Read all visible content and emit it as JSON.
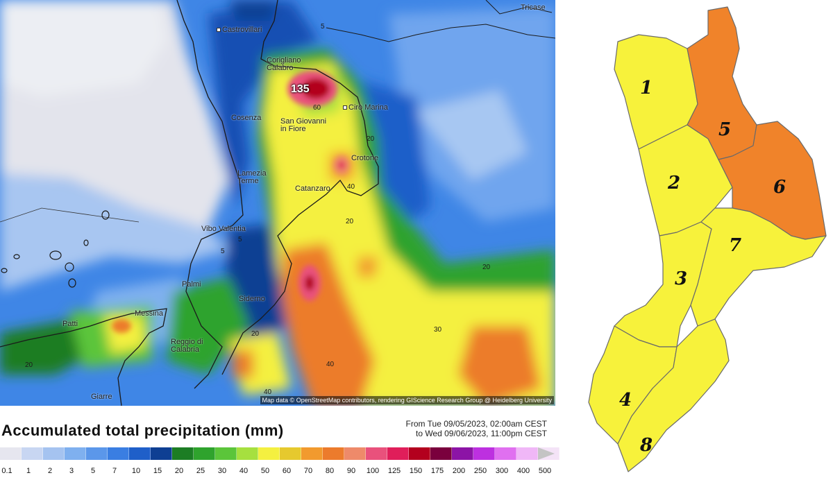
{
  "precip_map": {
    "peak_value": "135",
    "cities": [
      {
        "name": "Castrovillari"
      },
      {
        "name": "Corigliano\nCalabro"
      },
      {
        "name": "Cirò Marina"
      },
      {
        "name": "Cosenza"
      },
      {
        "name": "San Giovanni\nin Fiore"
      },
      {
        "name": "Crotone"
      },
      {
        "name": "Lamezia\nTerme"
      },
      {
        "name": "Catanzaro"
      },
      {
        "name": "Vibo Valentia"
      },
      {
        "name": "Palmi"
      },
      {
        "name": "Siderno"
      },
      {
        "name": "Messina"
      },
      {
        "name": "Patti"
      },
      {
        "name": "Reggio di\nCalabria"
      },
      {
        "name": "Giarre"
      },
      {
        "name": "Tricase"
      }
    ],
    "contour_labels": [
      "5",
      "60",
      "40",
      "20",
      "5",
      "20",
      "20",
      "20",
      "40",
      "20",
      "5",
      "40",
      "30"
    ],
    "credit": "Map data © OpenStreetMap contributors, rendering GIScience Research Group @ Heidelberg University"
  },
  "legend": {
    "title": "Accumulated total precipitation (mm)",
    "period_line1": "From Tue 09/05/2023, 02:00am CEST",
    "period_line2": "to Wed 09/06/2023, 11:00pm CEST",
    "labels": [
      "0.1",
      "1",
      "2",
      "3",
      "5",
      "7",
      "10",
      "15",
      "20",
      "25",
      "30",
      "40",
      "50",
      "60",
      "70",
      "80",
      "90",
      "100",
      "125",
      "150",
      "175",
      "200",
      "250",
      "300",
      "400",
      "500"
    ],
    "colors": [
      "#e6e6ef",
      "#c8d6f2",
      "#a5c3f0",
      "#7fb0ef",
      "#5b97ea",
      "#3a7ee2",
      "#1f5fc9",
      "#0e3f93",
      "#1c7d24",
      "#2fa32d",
      "#5bc53a",
      "#a6e03f",
      "#f4f040",
      "#e6c92e",
      "#f29a2e",
      "#ec7b2c",
      "#ee8a6a",
      "#e9517c",
      "#e01e5a",
      "#b3001e",
      "#7a003d",
      "#8c14a6",
      "#bd30e0",
      "#e070f0",
      "#f0b7f7",
      "#f4e3f7"
    ]
  },
  "alert_map": {
    "zones": [
      {
        "num": "1",
        "level": "yellow"
      },
      {
        "num": "2",
        "level": "yellow"
      },
      {
        "num": "3",
        "level": "yellow"
      },
      {
        "num": "4",
        "level": "yellow"
      },
      {
        "num": "5",
        "level": "orange"
      },
      {
        "num": "6",
        "level": "orange"
      },
      {
        "num": "7",
        "level": "yellow"
      },
      {
        "num": "8",
        "level": "yellow"
      }
    ],
    "colors": {
      "yellow": "#f7f23b",
      "orange": "#f0832a",
      "border": "#6a6a6a"
    }
  }
}
